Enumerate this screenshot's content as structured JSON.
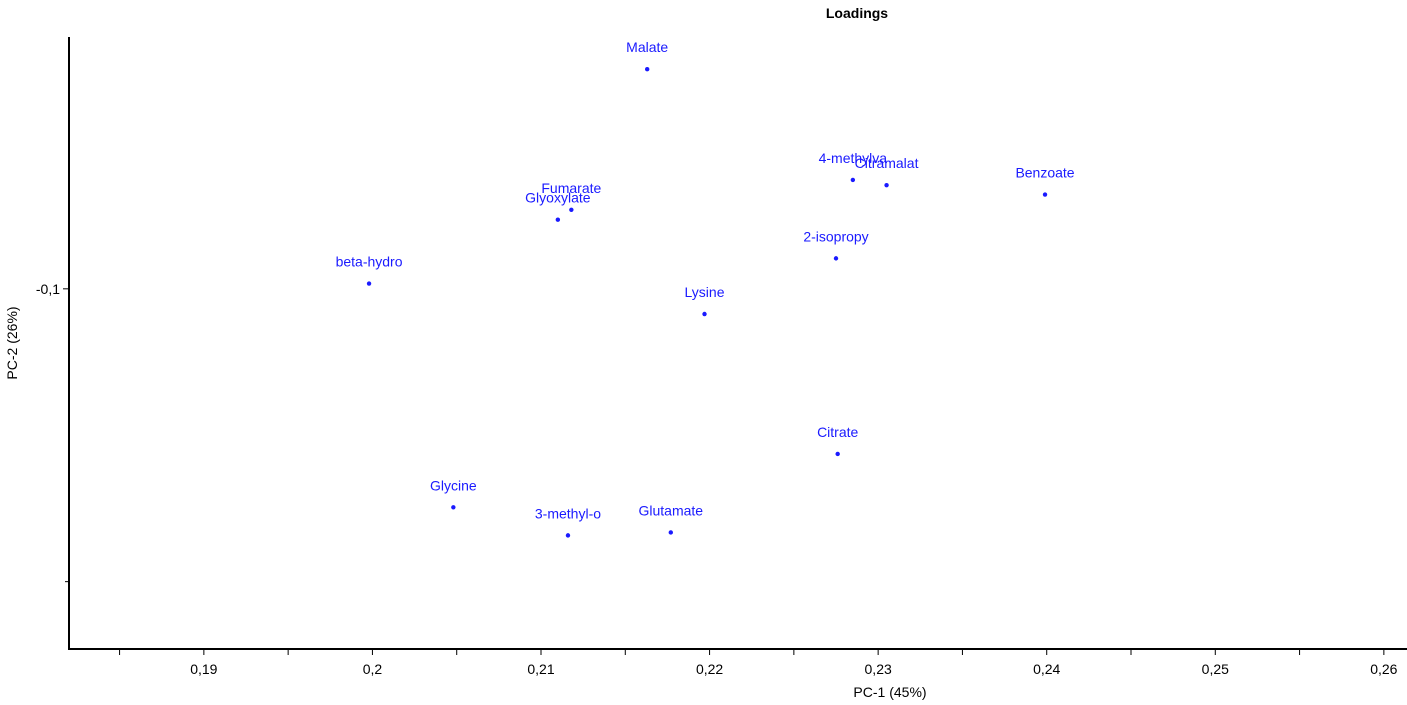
{
  "chart_data": {
    "type": "scatter",
    "title": "Loadings",
    "xlabel": "PC-1 (45%)",
    "ylabel": "PC-2 (26%)",
    "x_ticks": [
      {
        "value": 0.19,
        "label": "0,19"
      },
      {
        "value": 0.2,
        "label": "0,2"
      },
      {
        "value": 0.21,
        "label": "0,21"
      },
      {
        "value": 0.22,
        "label": "0,22"
      },
      {
        "value": 0.23,
        "label": "0,23"
      },
      {
        "value": 0.24,
        "label": "0,24"
      },
      {
        "value": 0.25,
        "label": "0,25"
      },
      {
        "value": 0.26,
        "label": "0,26"
      }
    ],
    "y_ticks": [
      {
        "value": -0.1,
        "label": "-0,1"
      }
    ],
    "xlim": [
      0.182,
      0.2625
    ],
    "ylim": [
      -0.1615,
      -0.057
    ],
    "grid": false,
    "point_color": "#1a1aff",
    "points": [
      {
        "label": "Malate",
        "x": 0.2163,
        "y": -0.0625
      },
      {
        "label": "4-methylva",
        "x": 0.2285,
        "y": -0.0814
      },
      {
        "label": "Citramalat",
        "x": 0.2305,
        "y": -0.0823
      },
      {
        "label": "Benzoate",
        "x": 0.2399,
        "y": -0.0839
      },
      {
        "label": "Fumarate",
        "x": 0.2118,
        "y": -0.0865
      },
      {
        "label": "Glyoxylate",
        "x": 0.211,
        "y": -0.0882
      },
      {
        "label": "2-isopropy",
        "x": 0.2275,
        "y": -0.0948
      },
      {
        "label": "beta-hydro",
        "x": 0.1998,
        "y": -0.0991
      },
      {
        "label": "Lysine",
        "x": 0.2197,
        "y": -0.1043
      },
      {
        "label": "Citrate",
        "x": 0.2276,
        "y": -0.1282
      },
      {
        "label": "Glycine",
        "x": 0.2048,
        "y": -0.1373
      },
      {
        "label": "Glutamate",
        "x": 0.2177,
        "y": -0.1416
      },
      {
        "label": "3-methyl-o",
        "x": 0.2116,
        "y": -0.1421
      }
    ]
  }
}
